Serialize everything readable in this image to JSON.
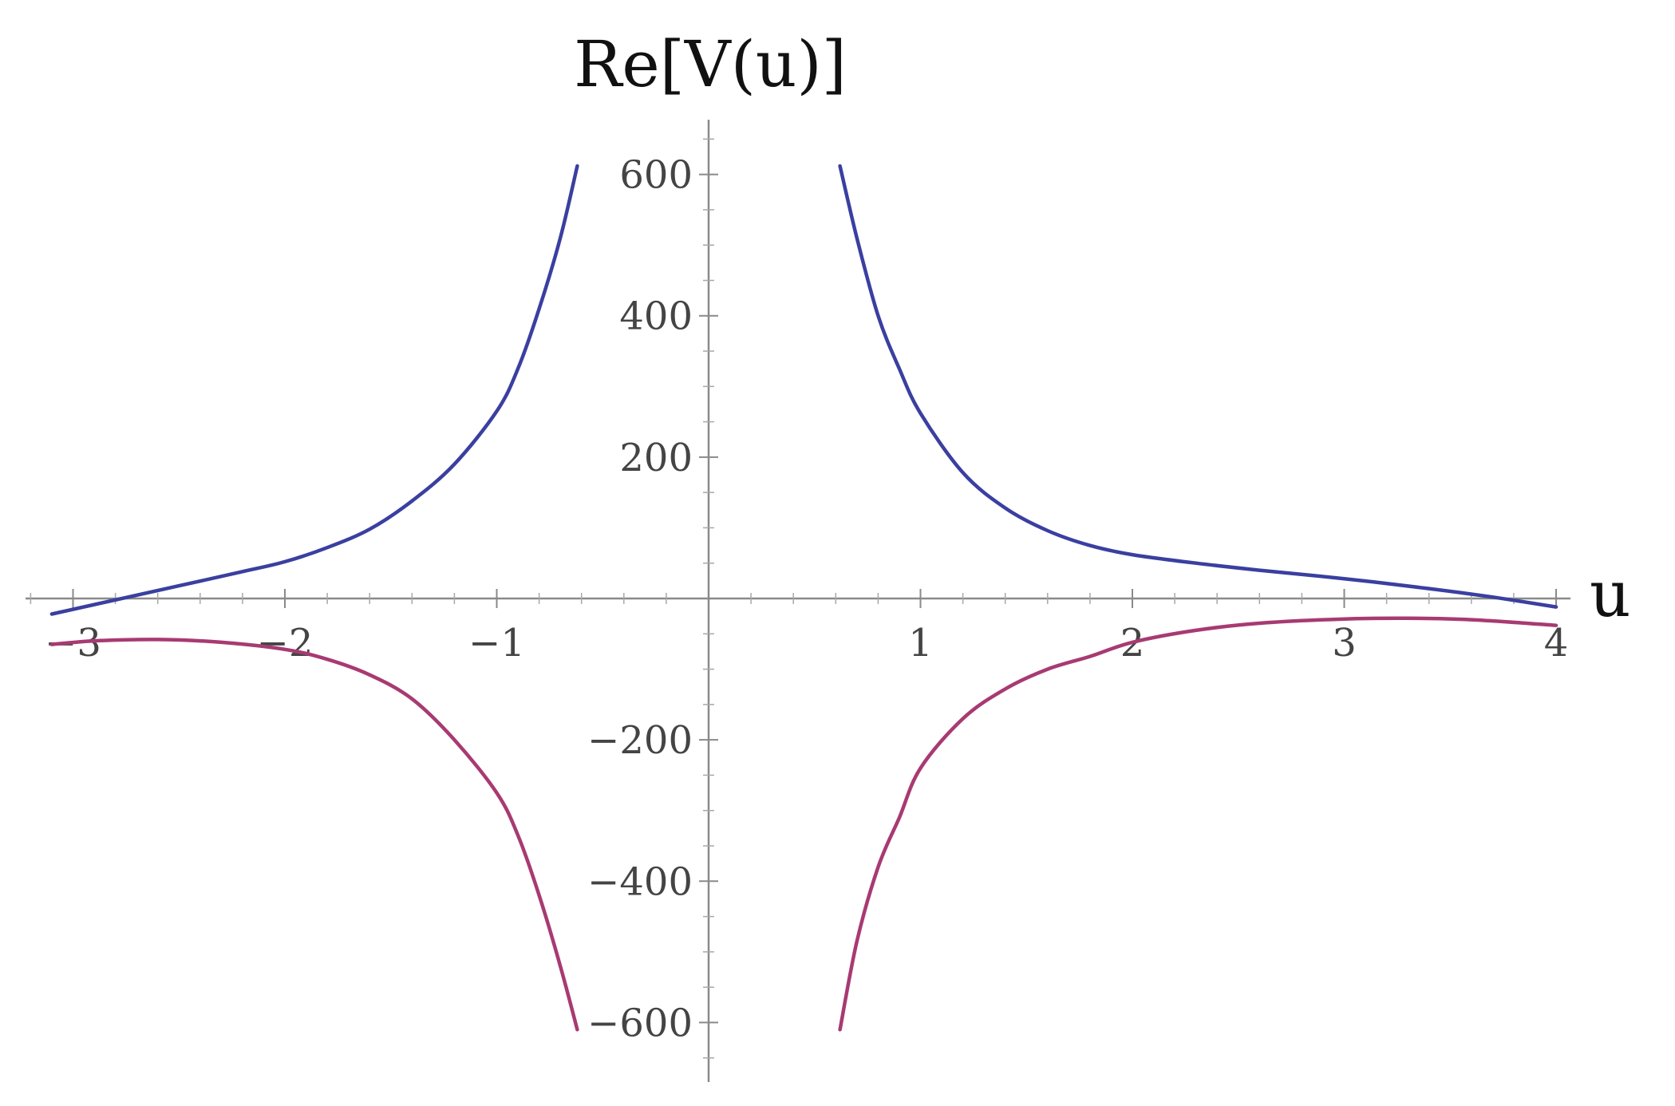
{
  "chart_data": {
    "type": "line",
    "title": "",
    "xlabel": "u",
    "ylabel": "Re[V(u)]",
    "xlim": [
      -3.2,
      4.0
    ],
    "ylim": [
      -680,
      680
    ],
    "x_ticks": [
      -3,
      -2,
      -1,
      1,
      2,
      3,
      4
    ],
    "x_tick_labels": [
      "−3",
      "−2",
      "−1",
      "1",
      "2",
      "3",
      "4"
    ],
    "y_ticks": [
      600,
      400,
      200,
      -200,
      -400,
      -600
    ],
    "y_tick_labels": [
      "600",
      "400",
      "200",
      "−200",
      "−400",
      "−600"
    ],
    "grid": false,
    "legend": "none",
    "series": [
      {
        "color": "#3a3fa0",
        "segments": [
          [
            [
              -3.1,
              -22
            ],
            [
              -2.8,
              -2
            ],
            [
              -2.5,
              18
            ],
            [
              -2.2,
              38
            ],
            [
              -2.0,
              52
            ],
            [
              -1.8,
              72
            ],
            [
              -1.6,
              98
            ],
            [
              -1.4,
              138
            ],
            [
              -1.2,
              190
            ],
            [
              -1.0,
              265
            ],
            [
              -0.9,
              325
            ],
            [
              -0.8,
              410
            ],
            [
              -0.7,
              510
            ],
            [
              -0.62,
              612
            ]
          ],
          [
            [
              0.62,
              612
            ],
            [
              0.7,
              510
            ],
            [
              0.8,
              400
            ],
            [
              0.9,
              325
            ],
            [
              1.0,
              262
            ],
            [
              1.2,
              178
            ],
            [
              1.4,
              128
            ],
            [
              1.6,
              96
            ],
            [
              1.8,
              75
            ],
            [
              2.0,
              62
            ],
            [
              2.3,
              50
            ],
            [
              2.6,
              40
            ],
            [
              3.0,
              28
            ],
            [
              3.4,
              14
            ],
            [
              3.7,
              2
            ],
            [
              4.0,
              -12
            ]
          ]
        ]
      },
      {
        "color": "#a83a72",
        "segments": [
          [
            [
              -3.1,
              -65
            ],
            [
              -2.9,
              -60
            ],
            [
              -2.6,
              -58
            ],
            [
              -2.3,
              -62
            ],
            [
              -2.0,
              -72
            ],
            [
              -1.8,
              -86
            ],
            [
              -1.6,
              -108
            ],
            [
              -1.4,
              -142
            ],
            [
              -1.2,
              -200
            ],
            [
              -1.0,
              -275
            ],
            [
              -0.9,
              -335
            ],
            [
              -0.8,
              -420
            ],
            [
              -0.7,
              -520
            ],
            [
              -0.62,
              -610
            ]
          ],
          [
            [
              0.62,
              -610
            ],
            [
              0.7,
              -485
            ],
            [
              0.8,
              -380
            ],
            [
              0.9,
              -310
            ],
            [
              1.0,
              -240
            ],
            [
              1.2,
              -170
            ],
            [
              1.4,
              -128
            ],
            [
              1.6,
              -100
            ],
            [
              1.8,
              -82
            ],
            [
              2.0,
              -62
            ],
            [
              2.3,
              -45
            ],
            [
              2.6,
              -35
            ],
            [
              3.0,
              -29
            ],
            [
              3.3,
              -28
            ],
            [
              3.6,
              -30
            ],
            [
              4.0,
              -38
            ]
          ]
        ]
      }
    ]
  }
}
